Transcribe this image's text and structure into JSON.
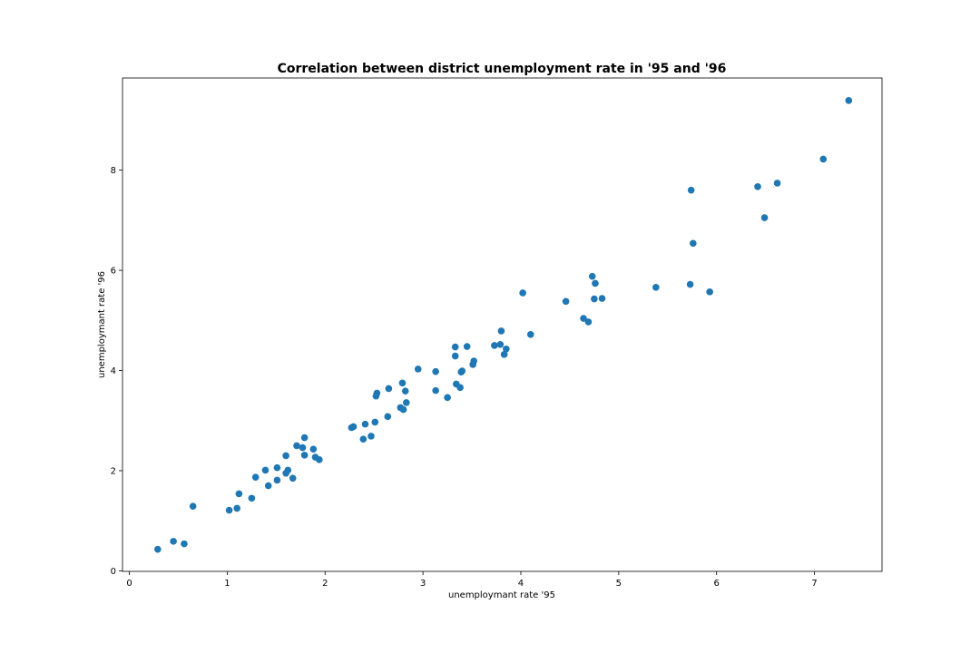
{
  "chart_data": {
    "type": "scatter",
    "title": "Correlation between district unemployment rate in '95 and '96",
    "xlabel": "unemploymant rate '95",
    "ylabel": "unemploymant rate '96",
    "xlim": [
      -0.07,
      7.69
    ],
    "ylim": [
      -0.01,
      9.84
    ],
    "xticks": [
      0,
      1,
      2,
      3,
      4,
      5,
      6,
      7
    ],
    "yticks": [
      0,
      2,
      4,
      6,
      8
    ],
    "grid": false,
    "legend": "none",
    "marker_color": "#1f77b4",
    "points": [
      {
        "x": 0.29,
        "y": 0.43
      },
      {
        "x": 0.45,
        "y": 0.59
      },
      {
        "x": 0.56,
        "y": 0.54
      },
      {
        "x": 0.65,
        "y": 1.29
      },
      {
        "x": 1.02,
        "y": 1.21
      },
      {
        "x": 1.1,
        "y": 1.25
      },
      {
        "x": 1.12,
        "y": 1.54
      },
      {
        "x": 1.25,
        "y": 1.45
      },
      {
        "x": 1.29,
        "y": 1.87
      },
      {
        "x": 1.39,
        "y": 2.01
      },
      {
        "x": 1.42,
        "y": 1.7
      },
      {
        "x": 1.51,
        "y": 1.81
      },
      {
        "x": 1.51,
        "y": 2.06
      },
      {
        "x": 1.6,
        "y": 1.95
      },
      {
        "x": 1.6,
        "y": 2.3
      },
      {
        "x": 1.62,
        "y": 2.01
      },
      {
        "x": 1.67,
        "y": 1.85
      },
      {
        "x": 1.71,
        "y": 2.5
      },
      {
        "x": 1.77,
        "y": 2.46
      },
      {
        "x": 1.79,
        "y": 2.31
      },
      {
        "x": 1.79,
        "y": 2.66
      },
      {
        "x": 1.88,
        "y": 2.43
      },
      {
        "x": 1.9,
        "y": 2.27
      },
      {
        "x": 1.94,
        "y": 2.22
      },
      {
        "x": 2.27,
        "y": 2.86
      },
      {
        "x": 2.29,
        "y": 2.88
      },
      {
        "x": 2.39,
        "y": 2.63
      },
      {
        "x": 2.41,
        "y": 2.93
      },
      {
        "x": 2.47,
        "y": 2.69
      },
      {
        "x": 2.51,
        "y": 2.97
      },
      {
        "x": 2.52,
        "y": 3.49
      },
      {
        "x": 2.53,
        "y": 3.55
      },
      {
        "x": 2.64,
        "y": 3.08
      },
      {
        "x": 2.65,
        "y": 3.64
      },
      {
        "x": 2.77,
        "y": 3.26
      },
      {
        "x": 2.79,
        "y": 3.75
      },
      {
        "x": 2.8,
        "y": 3.22
      },
      {
        "x": 2.82,
        "y": 3.59
      },
      {
        "x": 2.83,
        "y": 3.36
      },
      {
        "x": 2.95,
        "y": 4.03
      },
      {
        "x": 3.13,
        "y": 3.6
      },
      {
        "x": 3.13,
        "y": 3.98
      },
      {
        "x": 3.25,
        "y": 3.46
      },
      {
        "x": 3.33,
        "y": 4.47
      },
      {
        "x": 3.33,
        "y": 4.29
      },
      {
        "x": 3.34,
        "y": 3.73
      },
      {
        "x": 3.38,
        "y": 3.66
      },
      {
        "x": 3.39,
        "y": 3.97
      },
      {
        "x": 3.4,
        "y": 3.99
      },
      {
        "x": 3.45,
        "y": 4.48
      },
      {
        "x": 3.51,
        "y": 4.12
      },
      {
        "x": 3.52,
        "y": 4.19
      },
      {
        "x": 3.73,
        "y": 4.5
      },
      {
        "x": 3.79,
        "y": 4.52
      },
      {
        "x": 3.8,
        "y": 4.79
      },
      {
        "x": 3.83,
        "y": 4.32
      },
      {
        "x": 3.85,
        "y": 4.43
      },
      {
        "x": 4.02,
        "y": 5.55
      },
      {
        "x": 4.1,
        "y": 4.72
      },
      {
        "x": 4.46,
        "y": 5.38
      },
      {
        "x": 4.64,
        "y": 5.04
      },
      {
        "x": 4.69,
        "y": 4.97
      },
      {
        "x": 4.73,
        "y": 5.88
      },
      {
        "x": 4.75,
        "y": 5.43
      },
      {
        "x": 4.76,
        "y": 5.74
      },
      {
        "x": 4.83,
        "y": 5.44
      },
      {
        "x": 5.38,
        "y": 5.66
      },
      {
        "x": 5.73,
        "y": 5.72
      },
      {
        "x": 5.74,
        "y": 7.6
      },
      {
        "x": 5.76,
        "y": 6.54
      },
      {
        "x": 5.93,
        "y": 5.57
      },
      {
        "x": 6.42,
        "y": 7.67
      },
      {
        "x": 6.49,
        "y": 7.05
      },
      {
        "x": 6.62,
        "y": 7.74
      },
      {
        "x": 7.09,
        "y": 8.22
      },
      {
        "x": 7.35,
        "y": 9.39
      }
    ]
  }
}
